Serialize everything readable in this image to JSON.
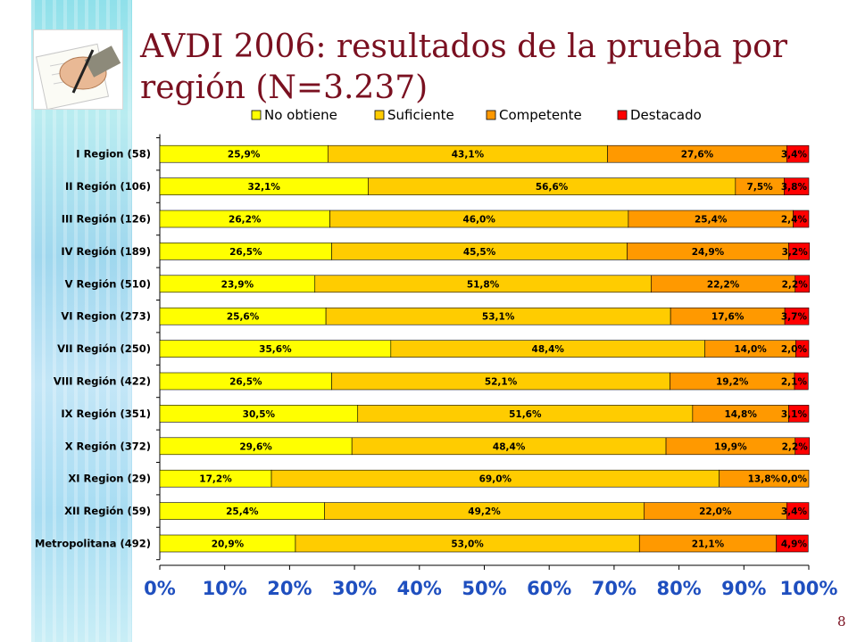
{
  "slide": {
    "title": "AVDI 2006: resultados de la prueba por región (N=3.237)",
    "page_number": "8"
  },
  "chart_data": {
    "type": "bar",
    "orientation": "horizontal",
    "stacked": "100%",
    "categories": [
      "I Region (58)",
      "II Región (106)",
      "III Región (126)",
      "IV Región (189)",
      "V Región (510)",
      "VI Region (273)",
      "VII Región (250)",
      "VIII Región (422)",
      "IX Región (351)",
      "X Región (372)",
      "XI Region (29)",
      "XII Región (59)",
      "Metropolitana (492)"
    ],
    "series": [
      {
        "name": "No obtiene",
        "color": "#ffff00",
        "values": [
          25.9,
          32.1,
          26.2,
          26.5,
          23.9,
          25.6,
          35.6,
          26.5,
          30.5,
          29.6,
          17.2,
          25.4,
          20.9
        ],
        "labels": [
          "25,9%",
          "32,1%",
          "26,2%",
          "26,5%",
          "23,9%",
          "25,6%",
          "35,6%",
          "26,5%",
          "30,5%",
          "29,6%",
          "17,2%",
          "25,4%",
          "20,9%"
        ]
      },
      {
        "name": "Suficiente",
        "color": "#ffcc00",
        "values": [
          43.1,
          56.6,
          46.0,
          45.5,
          51.8,
          53.1,
          48.4,
          52.1,
          51.6,
          48.4,
          69.0,
          49.2,
          53.0
        ],
        "labels": [
          "43,1%",
          "56,6%",
          "46,0%",
          "45,5%",
          "51,8%",
          "53,1%",
          "48,4%",
          "52,1%",
          "51,6%",
          "48,4%",
          "69,0%",
          "49,2%",
          "53,0%"
        ]
      },
      {
        "name": "Competente",
        "color": "#ff9900",
        "values": [
          27.6,
          7.5,
          25.4,
          24.9,
          22.2,
          17.6,
          14.0,
          19.2,
          14.8,
          19.9,
          13.8,
          22.0,
          21.1
        ],
        "labels": [
          "27,6%",
          "7,5%",
          "25,4%",
          "24,9%",
          "22,2%",
          "17,6%",
          "14,0%",
          "19,2%",
          "14,8%",
          "19,9%",
          "13,8%",
          "22,0%",
          "21,1%"
        ]
      },
      {
        "name": "Destacado",
        "color": "#ff0000",
        "values": [
          3.4,
          3.8,
          2.4,
          3.2,
          2.2,
          3.7,
          2.0,
          2.1,
          3.1,
          2.2,
          0.0,
          3.4,
          4.9
        ],
        "labels": [
          "3,4%",
          "3,8%",
          "2,4%",
          "3,2%",
          "2,2%",
          "3,7%",
          "2,0%",
          "2,1%",
          "3,1%",
          "2,2%",
          "0,0%",
          "3,4%",
          "4,9%"
        ]
      }
    ],
    "xlim": [
      0,
      100
    ],
    "x_ticks": [
      "0%",
      "10%",
      "20%",
      "30%",
      "40%",
      "50%",
      "60%",
      "70%",
      "80%",
      "90%",
      "100%"
    ],
    "legend_position": "top",
    "grid": false
  }
}
